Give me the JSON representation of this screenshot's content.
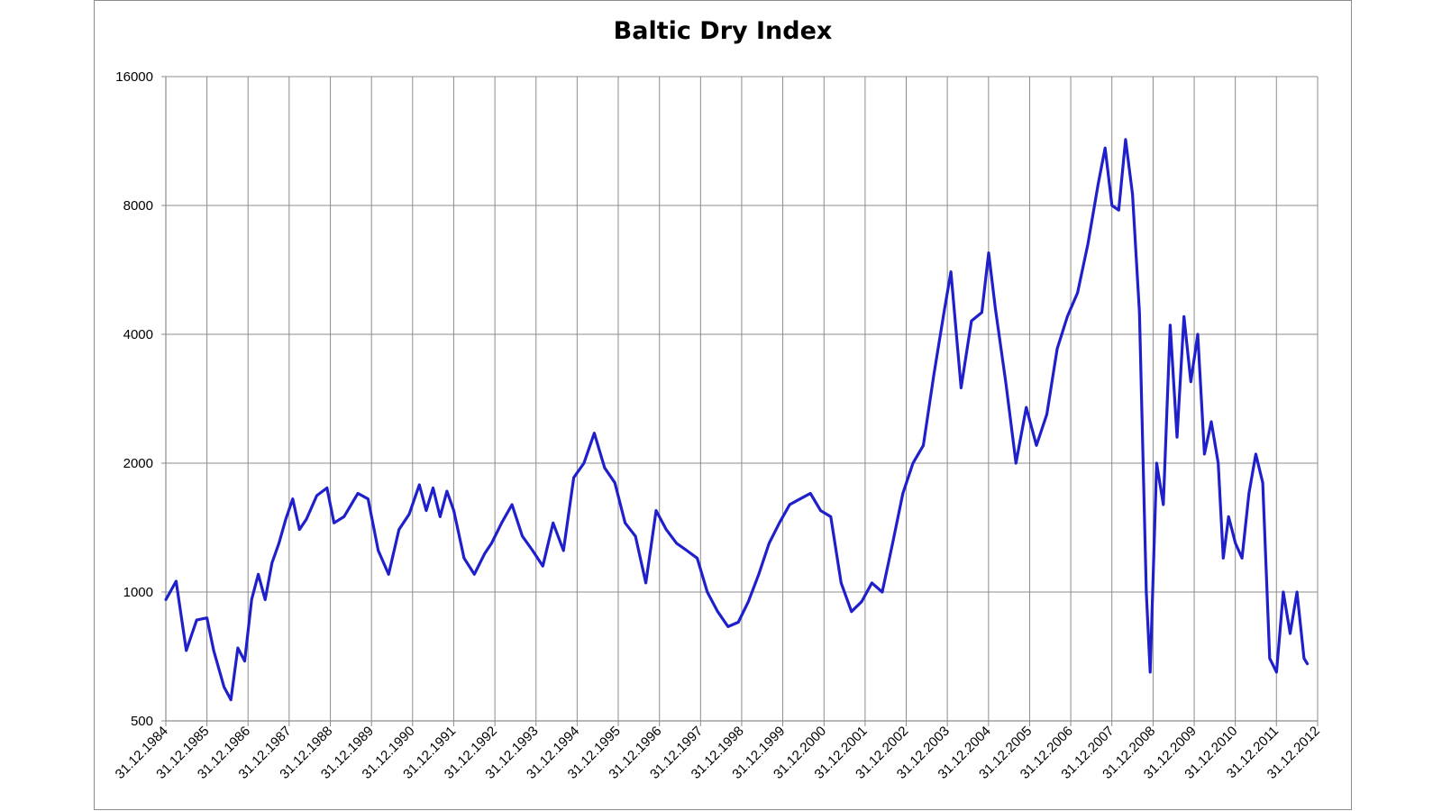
{
  "chart_data": {
    "type": "line",
    "title": "Baltic Dry Index",
    "xlabel": "",
    "ylabel": "",
    "y_scale": "log2",
    "ylim": [
      500,
      16000
    ],
    "y_ticks": [
      500,
      1000,
      2000,
      4000,
      8000,
      16000
    ],
    "y_tick_labels": [
      "500",
      "1000",
      "2000",
      "4000",
      "8000",
      "16000"
    ],
    "x_range": [
      "1984-12-31",
      "2012-12-31"
    ],
    "x_tick_labels": [
      "31.12.1984",
      "31.12.1985",
      "31.12.1986",
      "31.12.1987",
      "31.12.1988",
      "31.12.1989",
      "31.12.1990",
      "31.12.1991",
      "31.12.1992",
      "31.12.1993",
      "31.12.1994",
      "31.12.1995",
      "31.12.1996",
      "31.12.1997",
      "31.12.1998",
      "31.12.1999",
      "31.12.2000",
      "31.12.2001",
      "31.12.2002",
      "31.12.2003",
      "31.12.2004",
      "31.12.2005",
      "31.12.2006",
      "31.12.2007",
      "31.12.2008",
      "31.12.2009",
      "31.12.2010",
      "31.12.2011",
      "31.12.2012"
    ],
    "grid": true,
    "legend": "none",
    "series": [
      {
        "color": "#1f1fcc",
        "points": [
          [
            "1985-01-01",
            960
          ],
          [
            "1985-04-01",
            1060
          ],
          [
            "1985-07-01",
            730
          ],
          [
            "1985-10-01",
            860
          ],
          [
            "1985-12-31",
            870
          ],
          [
            "1986-03-01",
            730
          ],
          [
            "1986-06-01",
            600
          ],
          [
            "1986-08-01",
            560
          ],
          [
            "1986-10-01",
            740
          ],
          [
            "1986-12-01",
            690
          ],
          [
            "1987-02-01",
            960
          ],
          [
            "1987-04-01",
            1100
          ],
          [
            "1987-06-01",
            960
          ],
          [
            "1987-08-01",
            1170
          ],
          [
            "1987-10-01",
            1300
          ],
          [
            "1987-12-01",
            1480
          ],
          [
            "1988-02-01",
            1650
          ],
          [
            "1988-04-01",
            1400
          ],
          [
            "1988-06-01",
            1480
          ],
          [
            "1988-09-01",
            1680
          ],
          [
            "1988-12-01",
            1750
          ],
          [
            "1989-02-01",
            1450
          ],
          [
            "1989-05-01",
            1500
          ],
          [
            "1989-09-01",
            1700
          ],
          [
            "1989-12-01",
            1650
          ],
          [
            "1990-03-01",
            1250
          ],
          [
            "1990-06-01",
            1100
          ],
          [
            "1990-09-01",
            1400
          ],
          [
            "1990-12-01",
            1520
          ],
          [
            "1991-03-01",
            1780
          ],
          [
            "1991-05-01",
            1550
          ],
          [
            "1991-07-01",
            1750
          ],
          [
            "1991-09-01",
            1500
          ],
          [
            "1991-11-01",
            1720
          ],
          [
            "1992-01-01",
            1550
          ],
          [
            "1992-04-01",
            1200
          ],
          [
            "1992-07-01",
            1100
          ],
          [
            "1992-10-01",
            1230
          ],
          [
            "1992-12-01",
            1300
          ],
          [
            "1993-03-01",
            1450
          ],
          [
            "1993-06-01",
            1600
          ],
          [
            "1993-09-01",
            1350
          ],
          [
            "1993-12-01",
            1250
          ],
          [
            "1994-03-01",
            1150
          ],
          [
            "1994-06-01",
            1450
          ],
          [
            "1994-09-01",
            1250
          ],
          [
            "1994-12-01",
            1850
          ],
          [
            "1995-03-01",
            2000
          ],
          [
            "1995-06-01",
            2350
          ],
          [
            "1995-09-01",
            1950
          ],
          [
            "1995-12-01",
            1800
          ],
          [
            "1996-03-01",
            1450
          ],
          [
            "1996-06-01",
            1350
          ],
          [
            "1996-09-01",
            1050
          ],
          [
            "1996-12-01",
            1550
          ],
          [
            "1997-03-01",
            1400
          ],
          [
            "1997-06-01",
            1300
          ],
          [
            "1997-09-01",
            1250
          ],
          [
            "1997-12-01",
            1200
          ],
          [
            "1998-03-01",
            1000
          ],
          [
            "1998-06-01",
            900
          ],
          [
            "1998-09-01",
            830
          ],
          [
            "1998-12-01",
            850
          ],
          [
            "1999-03-01",
            950
          ],
          [
            "1999-06-01",
            1100
          ],
          [
            "1999-09-01",
            1300
          ],
          [
            "1999-12-01",
            1450
          ],
          [
            "2000-03-01",
            1600
          ],
          [
            "2000-06-01",
            1650
          ],
          [
            "2000-09-01",
            1700
          ],
          [
            "2000-12-01",
            1550
          ],
          [
            "2001-03-01",
            1500
          ],
          [
            "2001-06-01",
            1050
          ],
          [
            "2001-09-01",
            900
          ],
          [
            "2001-12-01",
            950
          ],
          [
            "2002-03-01",
            1050
          ],
          [
            "2002-06-01",
            1000
          ],
          [
            "2002-09-01",
            1300
          ],
          [
            "2002-12-01",
            1700
          ],
          [
            "2003-03-01",
            2000
          ],
          [
            "2003-06-01",
            2200
          ],
          [
            "2003-09-01",
            3200
          ],
          [
            "2003-12-01",
            4500
          ],
          [
            "2004-02-01",
            5600
          ],
          [
            "2004-05-01",
            3000
          ],
          [
            "2004-08-01",
            4300
          ],
          [
            "2004-11-01",
            4500
          ],
          [
            "2005-01-01",
            6200
          ],
          [
            "2005-03-01",
            4600
          ],
          [
            "2005-06-01",
            3100
          ],
          [
            "2005-09-01",
            2000
          ],
          [
            "2005-12-01",
            2700
          ],
          [
            "2006-03-01",
            2200
          ],
          [
            "2006-06-01",
            2600
          ],
          [
            "2006-09-01",
            3700
          ],
          [
            "2006-12-01",
            4400
          ],
          [
            "2007-03-01",
            5000
          ],
          [
            "2007-06-01",
            6500
          ],
          [
            "2007-09-01",
            9000
          ],
          [
            "2007-11-01",
            10900
          ],
          [
            "2008-01-01",
            8000
          ],
          [
            "2008-03-01",
            7800
          ],
          [
            "2008-05-01",
            11400
          ],
          [
            "2008-07-01",
            8500
          ],
          [
            "2008-09-01",
            4500
          ],
          [
            "2008-11-01",
            1000
          ],
          [
            "2008-12-05",
            650
          ],
          [
            "2009-02-01",
            2000
          ],
          [
            "2009-04-01",
            1600
          ],
          [
            "2009-06-01",
            4200
          ],
          [
            "2009-08-01",
            2300
          ],
          [
            "2009-10-01",
            4400
          ],
          [
            "2009-12-01",
            3100
          ],
          [
            "2010-02-01",
            4000
          ],
          [
            "2010-04-01",
            2100
          ],
          [
            "2010-06-01",
            2500
          ],
          [
            "2010-08-01",
            2000
          ],
          [
            "2010-09-15",
            1200
          ],
          [
            "2010-11-01",
            1500
          ],
          [
            "2011-01-01",
            1300
          ],
          [
            "2011-03-01",
            1200
          ],
          [
            "2011-05-01",
            1700
          ],
          [
            "2011-07-01",
            2100
          ],
          [
            "2011-09-01",
            1800
          ],
          [
            "2011-11-01",
            700
          ],
          [
            "2012-01-01",
            650
          ],
          [
            "2012-03-01",
            1000
          ],
          [
            "2012-05-01",
            800
          ],
          [
            "2012-07-01",
            1000
          ],
          [
            "2012-09-01",
            700
          ],
          [
            "2012-10-01",
            680
          ]
        ]
      }
    ]
  }
}
